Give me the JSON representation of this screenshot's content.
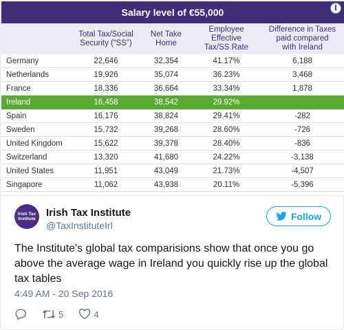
{
  "table": {
    "title": "Salary level of €55,000",
    "headers": {
      "country": "",
      "tax_ss": "Total Tax/Social\nSecurity (“SS”)",
      "net": "Net Take\nHome",
      "rate": "Employee\nEffective\nTax/SS Rate",
      "diff": "Difference in Taxes\npaid compared\nwith Ireland"
    },
    "rows": [
      {
        "country": "Germany",
        "tax_ss": "22,646",
        "net": "32,354",
        "rate": "41.17%",
        "diff": "6,188"
      },
      {
        "country": "Netherlands",
        "tax_ss": "19,926",
        "net": "35,074",
        "rate": "36.23%",
        "diff": "3,468"
      },
      {
        "country": "France",
        "tax_ss": "18,336",
        "net": "36,664",
        "rate": "33.34%",
        "diff": "1,878"
      },
      {
        "country": "Ireland",
        "tax_ss": "16,458",
        "net": "38,542",
        "rate": "29.92%",
        "diff": ""
      },
      {
        "country": "Spain",
        "tax_ss": "16,176",
        "net": "38,824",
        "rate": "29.41%",
        "diff": "-282"
      },
      {
        "country": "Sweden",
        "tax_ss": "15,732",
        "net": "39,268",
        "rate": "28.60%",
        "diff": "-726"
      },
      {
        "country": "United Kingdom",
        "tax_ss": "15,622",
        "net": "39,378",
        "rate": "28.40%",
        "diff": "-836"
      },
      {
        "country": "Switzerland",
        "tax_ss": "13,320",
        "net": "41,680",
        "rate": "24.22%",
        "diff": "-3,138"
      },
      {
        "country": "United States",
        "tax_ss": "11,951",
        "net": "43,049",
        "rate": "21.73%",
        "diff": "-4,507"
      },
      {
        "country": "Singapore",
        "tax_ss": "11,062",
        "net": "43,938",
        "rate": "20.11%",
        "diff": "-5,396"
      }
    ],
    "highlight_country": "Ireland",
    "colors": {
      "header": "#3f2e77",
      "highlight": "#5aaa32"
    },
    "info_icon": "info-icon"
  },
  "tweet": {
    "avatar_text": "Irish Tax Institute",
    "display_name": "Irish Tax Institute",
    "handle": "@TaxInstituteIrl",
    "follow_label": "Follow",
    "text": "The Institute's global tax comparisions show that once you go above the average wage in Ireland you quickly rise up the global tax tables",
    "timestamp": "4:49 AM - 20 Sep 2016",
    "retweets": "5",
    "likes": "4",
    "accent": "#1da1f2"
  }
}
